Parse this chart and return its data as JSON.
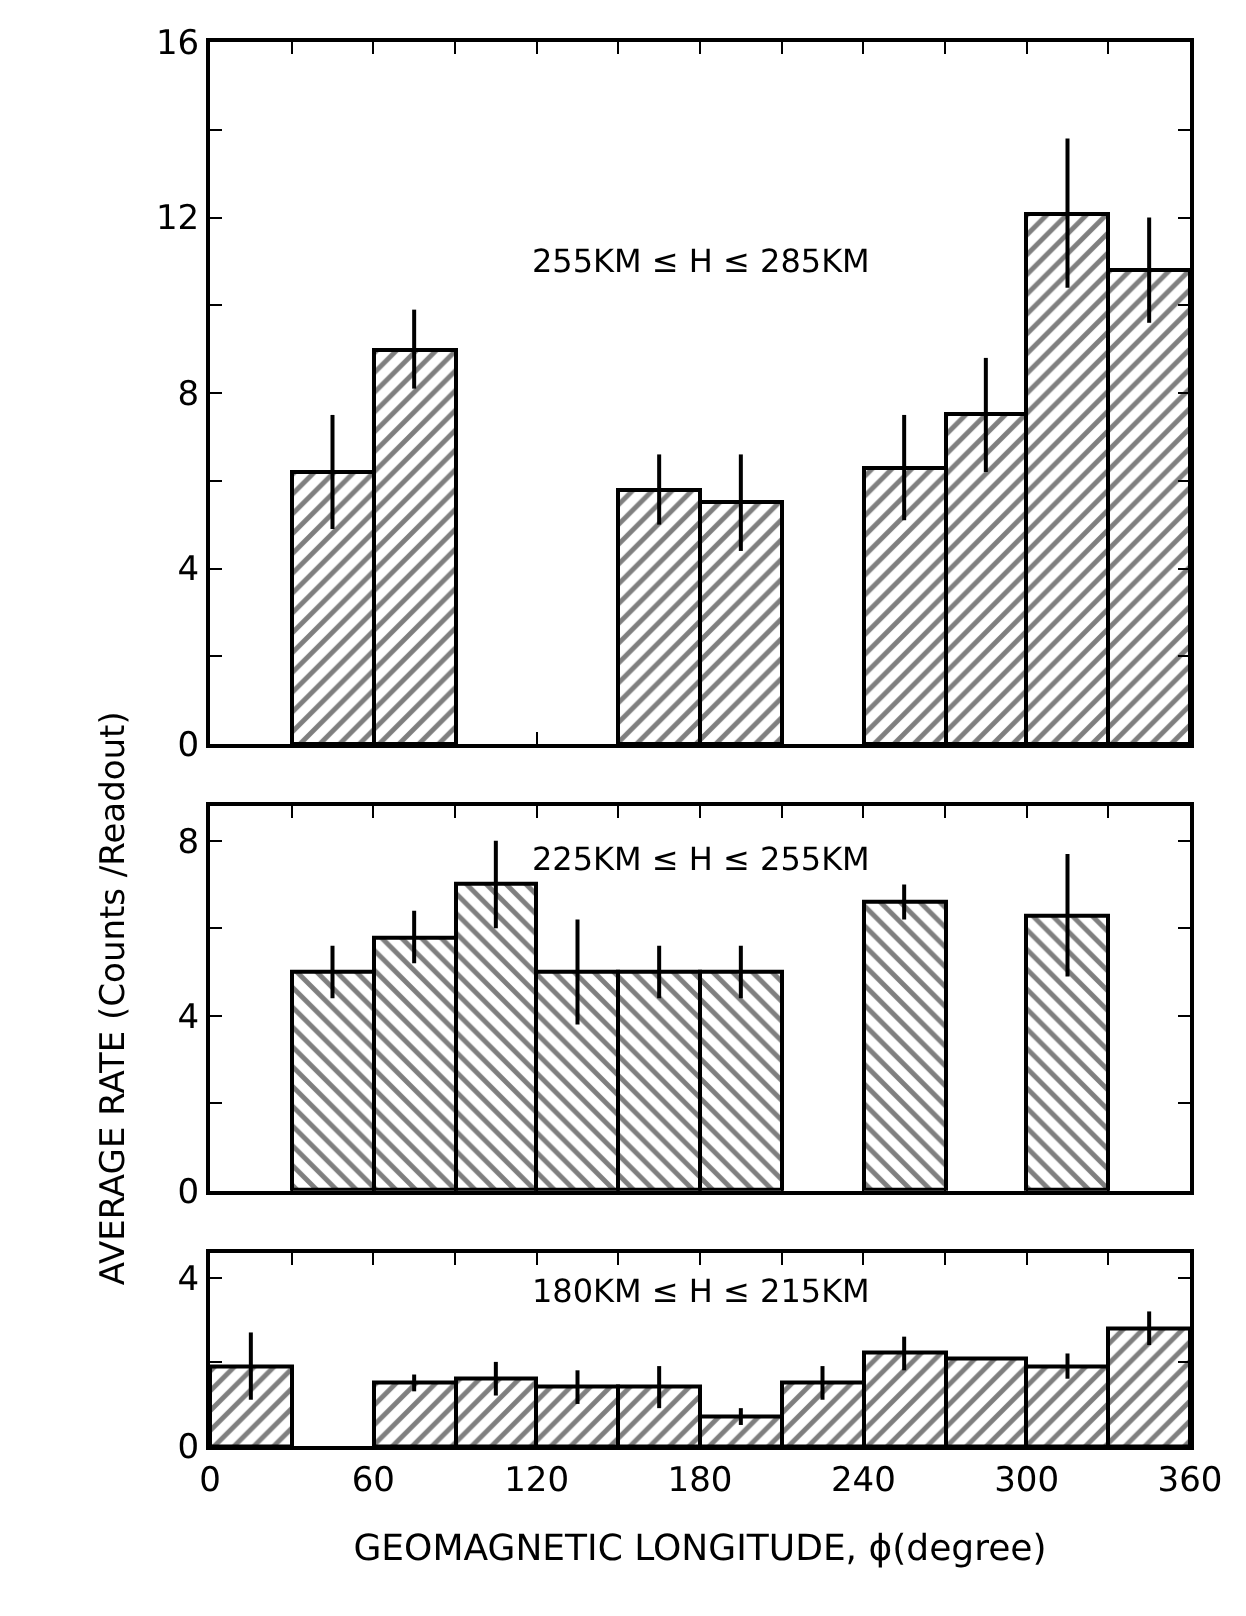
{
  "chart_data": [
    {
      "type": "histogram",
      "bins": [
        0,
        30,
        60,
        90,
        120,
        150,
        180,
        210,
        240,
        270,
        300,
        330,
        360
      ],
      "values": [
        null,
        6.2,
        9.0,
        null,
        null,
        5.8,
        5.5,
        null,
        6.3,
        7.5,
        12.1,
        10.8
      ],
      "errors": [
        null,
        1.3,
        0.9,
        null,
        null,
        0.8,
        1.1,
        null,
        1.2,
        1.3,
        1.7,
        1.2
      ],
      "color": "#000000",
      "xlim": [
        0,
        360
      ],
      "xticks": [
        {
          "value": 0,
          "label": null
        },
        {
          "value": 30,
          "label": null
        },
        {
          "value": 60,
          "label": null
        },
        {
          "value": 90,
          "label": null
        },
        {
          "value": 120,
          "label": null
        },
        {
          "value": 150,
          "label": null
        },
        {
          "value": 180,
          "label": null
        },
        {
          "value": 210,
          "label": null
        },
        {
          "value": 240,
          "label": null
        },
        {
          "value": 270,
          "label": null
        },
        {
          "value": 300,
          "label": null
        },
        {
          "value": 330,
          "label": null
        },
        {
          "value": 360,
          "label": null
        }
      ],
      "ylim": [
        0,
        16
      ],
      "yticks": [
        0,
        {
          "value": 2,
          "label": null
        },
        4,
        {
          "value": 6,
          "label": null
        },
        8,
        {
          "value": 10,
          "label": null
        },
        12,
        {
          "value": 14,
          "label": null
        },
        16
      ],
      "tick_labels": "y",
      "annotations": [
        "255KM ≤ H ≤ 285KM"
      ]
    },
    {
      "type": "histogram",
      "bins": [
        0,
        30,
        60,
        90,
        120,
        150,
        180,
        210,
        240,
        270,
        300,
        330,
        360
      ],
      "values": [
        null,
        5.0,
        5.8,
        7.0,
        5.0,
        5.0,
        5.0,
        null,
        6.6,
        null,
        6.3,
        null
      ],
      "errors": [
        null,
        0.6,
        0.6,
        1.0,
        1.2,
        0.6,
        0.6,
        null,
        0.4,
        null,
        1.4,
        null
      ],
      "color": "#000000",
      "xlim": [
        0,
        360
      ],
      "xticks": [
        {
          "value": 0,
          "label": null
        },
        {
          "value": 30,
          "label": null
        },
        {
          "value": 60,
          "label": null
        },
        {
          "value": 90,
          "label": null
        },
        {
          "value": 120,
          "label": null
        },
        {
          "value": 150,
          "label": null
        },
        {
          "value": 180,
          "label": null
        },
        {
          "value": 210,
          "label": null
        },
        {
          "value": 240,
          "label": null
        },
        {
          "value": 270,
          "label": null
        },
        {
          "value": 300,
          "label": null
        },
        {
          "value": 330,
          "label": null
        },
        {
          "value": 360,
          "label": null
        }
      ],
      "ylim": [
        0,
        8.8
      ],
      "yticks": [
        0,
        {
          "value": 2,
          "label": null
        },
        4,
        {
          "value": 6,
          "label": null
        },
        8
      ],
      "tick_labels": "y",
      "ylabel": "AVERAGE RATE (Counts /Readout)",
      "annotations": [
        "225KM ≤ H ≤ 255KM"
      ]
    },
    {
      "type": "histogram",
      "bins": [
        0,
        30,
        60,
        90,
        120,
        150,
        180,
        210,
        240,
        270,
        300,
        330,
        360
      ],
      "values": [
        1.9,
        null,
        1.5,
        1.6,
        1.4,
        1.4,
        0.7,
        1.5,
        2.2,
        2.1,
        1.9,
        2.8
      ],
      "errors": [
        0.8,
        null,
        0.2,
        0.4,
        0.4,
        0.5,
        0.2,
        0.4,
        0.4,
        null,
        0.3,
        0.4
      ],
      "color": "#000000",
      "xlim": [
        0,
        360
      ],
      "xticks": [
        0,
        {
          "value": 30,
          "label": null
        },
        60,
        {
          "value": 90,
          "label": null
        },
        120,
        {
          "value": 150,
          "label": null
        },
        180,
        {
          "value": 210,
          "label": null
        },
        240,
        {
          "value": 270,
          "label": null
        },
        300,
        {
          "value": 330,
          "label": null
        },
        360
      ],
      "ylim": [
        0,
        4.6
      ],
      "yticks": [
        0,
        {
          "value": 2,
          "label": null
        },
        4
      ],
      "xlabel": "GEOMAGNETIC LONGITUDE, ϕ(degree)",
      "annotations": [
        "180KM ≤ H ≤ 215KM"
      ]
    }
  ]
}
